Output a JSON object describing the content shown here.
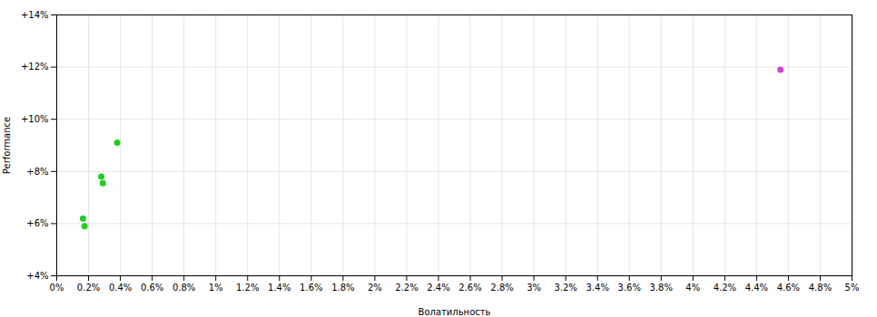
{
  "chart_data": {
    "type": "scatter",
    "xlabel": "Волатильность",
    "ylabel": "Performance",
    "xlim": [
      0.0,
      0.05
    ],
    "ylim": [
      0.04,
      0.14
    ],
    "xticks": [
      {
        "value": 0.0,
        "label": "0%"
      },
      {
        "value": 0.002,
        "label": "0.2%"
      },
      {
        "value": 0.004,
        "label": "0.4%"
      },
      {
        "value": 0.006,
        "label": "0.6%"
      },
      {
        "value": 0.008,
        "label": "0.8%"
      },
      {
        "value": 0.01,
        "label": "1%"
      },
      {
        "value": 0.012,
        "label": "1.2%"
      },
      {
        "value": 0.014,
        "label": "1.4%"
      },
      {
        "value": 0.016,
        "label": "1.6%"
      },
      {
        "value": 0.018,
        "label": "1.8%"
      },
      {
        "value": 0.02,
        "label": "2%"
      },
      {
        "value": 0.022,
        "label": "2.2%"
      },
      {
        "value": 0.024,
        "label": "2.4%"
      },
      {
        "value": 0.026,
        "label": "2.6%"
      },
      {
        "value": 0.028,
        "label": "2.8%"
      },
      {
        "value": 0.03,
        "label": "3%"
      },
      {
        "value": 0.032,
        "label": "3.2%"
      },
      {
        "value": 0.034,
        "label": "3.4%"
      },
      {
        "value": 0.036,
        "label": "3.6%"
      },
      {
        "value": 0.038,
        "label": "3.8%"
      },
      {
        "value": 0.04,
        "label": "4%"
      },
      {
        "value": 0.042,
        "label": "4.2%"
      },
      {
        "value": 0.044,
        "label": "4.4%"
      },
      {
        "value": 0.046,
        "label": "4.6%"
      },
      {
        "value": 0.048,
        "label": "4.8%"
      },
      {
        "value": 0.05,
        "label": "5%"
      }
    ],
    "yticks": [
      {
        "value": 0.04,
        "label": "+4%"
      },
      {
        "value": 0.06,
        "label": "+6%"
      },
      {
        "value": 0.08,
        "label": "+8%"
      },
      {
        "value": 0.1,
        "label": "+10%"
      },
      {
        "value": 0.12,
        "label": "+12%"
      },
      {
        "value": 0.14,
        "label": "+14%"
      }
    ],
    "grid": true,
    "series": [
      {
        "color": "#22cc22",
        "x": [
          0.00165,
          0.00175,
          0.0028,
          0.0029,
          0.0038
        ],
        "values": [
          0.062,
          0.059,
          0.078,
          0.0755,
          0.091
        ]
      },
      {
        "color": "#cc44cc",
        "x": [
          0.0455
        ],
        "values": [
          0.119
        ]
      }
    ]
  }
}
